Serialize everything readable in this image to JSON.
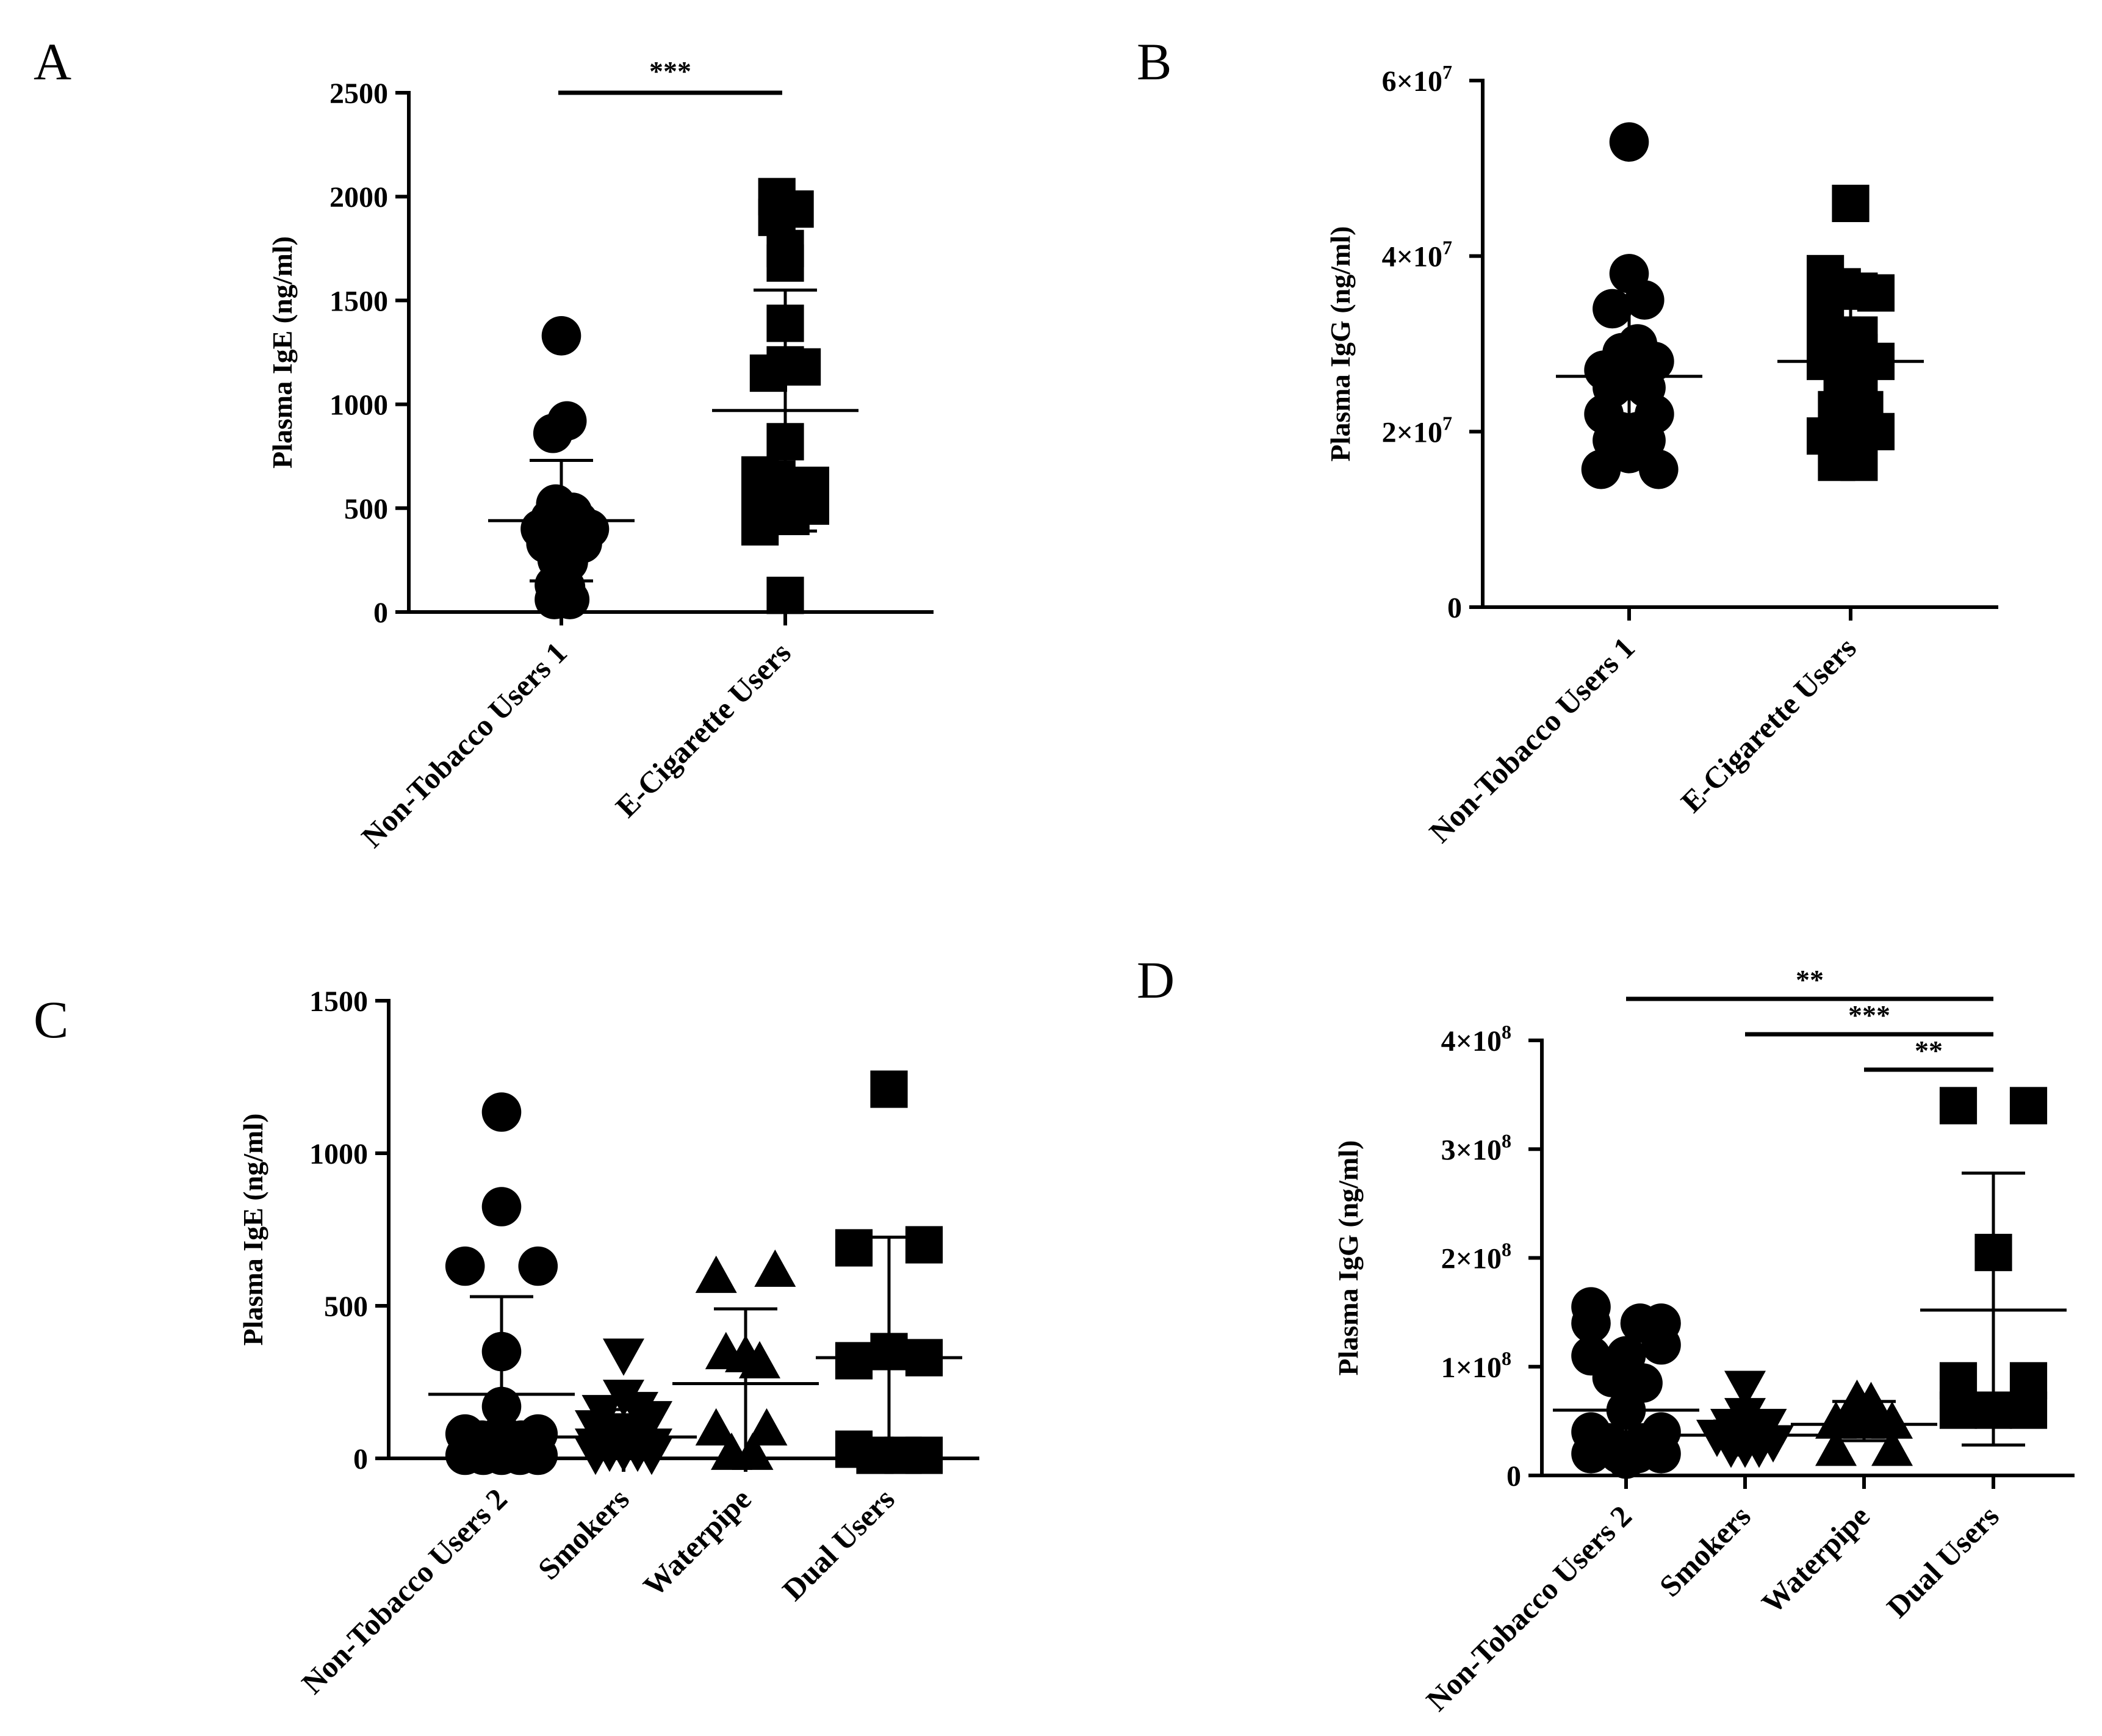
{
  "chart_data": [
    {
      "panel": "A",
      "type": "scatter",
      "ylabel": "Plasma IgE (ng/ml)",
      "ylim": [
        0,
        2500
      ],
      "yticks": [
        {
          "v": 0,
          "t": "0"
        },
        {
          "v": 500,
          "t": "500"
        },
        {
          "v": 1000,
          "t": "1000"
        },
        {
          "v": 1500,
          "t": "1500"
        },
        {
          "v": 2000,
          "t": "2000"
        },
        {
          "v": 2500,
          "t": "2500"
        }
      ],
      "categories": [
        "Non-Tobacco Users 1",
        "E-Cigarette Users"
      ],
      "series": [
        {
          "name": "Non-Tobacco Users 1",
          "marker": "circle",
          "mean": 440,
          "sd_low": 150,
          "sd_high": 730,
          "points": [
            [
              0,
              1330
            ],
            [
              -0.06,
              860
            ],
            [
              0.04,
              920
            ],
            [
              -0.15,
              400
            ],
            [
              -0.08,
              450
            ],
            [
              -0.04,
              520
            ],
            [
              0,
              430
            ],
            [
              0.04,
              470
            ],
            [
              0.08,
              480
            ],
            [
              0.12,
              440
            ],
            [
              0.16,
              410
            ],
            [
              0.2,
              400
            ],
            [
              -0.11,
              330
            ],
            [
              -0.06,
              310
            ],
            [
              0.02,
              320
            ],
            [
              0.08,
              340
            ],
            [
              0.15,
              330
            ],
            [
              -0.03,
              250
            ],
            [
              0.05,
              240
            ],
            [
              -0.05,
              130
            ],
            [
              0.03,
              120
            ],
            [
              -0.05,
              60
            ],
            [
              0.06,
              60
            ]
          ]
        },
        {
          "name": "E-Cigarette Users",
          "marker": "square",
          "mean": 970,
          "sd_low": 390,
          "sd_high": 1550,
          "points": [
            [
              -0.06,
              2000
            ],
            [
              -0.06,
              1900
            ],
            [
              0.07,
              1940
            ],
            [
              0,
              1680
            ],
            [
              -0.12,
              1150
            ],
            [
              0,
              1190
            ],
            [
              0.12,
              1180
            ],
            [
              0,
              1390
            ],
            [
              0,
              1750
            ],
            [
              0,
              820
            ],
            [
              -0.18,
              660
            ],
            [
              -0.06,
              640
            ],
            [
              0.18,
              610
            ],
            [
              -0.18,
              550
            ],
            [
              0.18,
              510
            ],
            [
              -0.06,
              530
            ],
            [
              -0.18,
              410
            ],
            [
              0.04,
              460
            ],
            [
              0,
              80
            ]
          ]
        }
      ],
      "significance": [
        {
          "from": 0,
          "to": 1,
          "label": "***"
        }
      ]
    },
    {
      "panel": "B",
      "type": "scatter",
      "ylabel": "Plasma IgG (ng/ml)",
      "ylim": [
        0,
        60000000
      ],
      "yticks": [
        {
          "v": 0,
          "t": "0",
          "sup": ""
        },
        {
          "v": 20000000,
          "t": "2×10",
          "sup": "7"
        },
        {
          "v": 40000000,
          "t": "4×10",
          "sup": "7"
        },
        {
          "v": 60000000,
          "t": "6×10",
          "sup": "7"
        }
      ],
      "categories": [
        "Non-Tobacco Users 1",
        "E-Cigarette Users"
      ],
      "series": [
        {
          "name": "Non-Tobacco Users 1",
          "marker": "circle",
          "mean": 26300000,
          "sd_low": 17500000,
          "sd_high": 35000000,
          "points": [
            [
              0,
              53000000
            ],
            [
              0,
              38000000
            ],
            [
              -0.12,
              34000000
            ],
            [
              0.11,
              35000000
            ],
            [
              -0.05,
              29000000
            ],
            [
              0.06,
              30000000
            ],
            [
              -0.18,
              27000000
            ],
            [
              0.18,
              28000000
            ],
            [
              -0.06,
              26000000
            ],
            [
              0.05,
              26000000
            ],
            [
              -0.12,
              25000000
            ],
            [
              0.12,
              25000000
            ],
            [
              -0.18,
              22000000
            ],
            [
              0.18,
              22000000
            ],
            [
              -0.06,
              20000000
            ],
            [
              0.06,
              20000000
            ],
            [
              -0.12,
              19000000
            ],
            [
              0.12,
              19000000
            ],
            [
              0,
              17500000
            ],
            [
              -0.2,
              15700000
            ],
            [
              0.21,
              15700000
            ]
          ]
        },
        {
          "name": "E-Cigarette Users",
          "marker": "square",
          "mean": 28000000,
          "sd_low": 20000000,
          "sd_high": 36000000,
          "points": [
            [
              0,
              46000000
            ],
            [
              -0.18,
              38000000
            ],
            [
              -0.06,
              36500000
            ],
            [
              0.06,
              36000000
            ],
            [
              0.18,
              35800000
            ],
            [
              -0.18,
              34000000
            ],
            [
              -0.18,
              31000000
            ],
            [
              -0.06,
              31000000
            ],
            [
              0.06,
              31000000
            ],
            [
              -0.06,
              29500000
            ],
            [
              0.06,
              29000000
            ],
            [
              -0.18,
              28000000
            ],
            [
              0.18,
              28000000
            ],
            [
              -0.06,
              26000000
            ],
            [
              0.06,
              25000000
            ],
            [
              -0.1,
              22500000
            ],
            [
              0.1,
              22500000
            ],
            [
              -0.18,
              19500000
            ],
            [
              -0.06,
              20000000
            ],
            [
              0.18,
              20000000
            ],
            [
              -0.1,
              16500000
            ],
            [
              0.06,
              16500000
            ]
          ]
        }
      ]
    },
    {
      "panel": "C",
      "type": "scatter",
      "ylabel": "Plasma IgE (ng/ml)",
      "ylim": [
        0,
        1500
      ],
      "yticks": [
        {
          "v": 0,
          "t": "0"
        },
        {
          "v": 500,
          "t": "500"
        },
        {
          "v": 1000,
          "t": "1000"
        },
        {
          "v": 1500,
          "t": "1500"
        }
      ],
      "categories": [
        "Non-Tobacco Users 2",
        "Smokers",
        "Waterpipe",
        "Dual Users"
      ],
      "series": [
        {
          "name": "Non-Tobacco Users 2",
          "marker": "circle",
          "mean": 210,
          "sd_low": 0,
          "sd_high": 530,
          "points": [
            [
              0,
              1135
            ],
            [
              0,
              825
            ],
            [
              -0.26,
              630
            ],
            [
              0.26,
              630
            ],
            [
              0,
              350
            ],
            [
              0,
              170
            ],
            [
              0,
              80
            ],
            [
              -0.26,
              80
            ],
            [
              0.26,
              80
            ],
            [
              -0.14,
              60
            ],
            [
              0.14,
              60
            ],
            [
              -0.07,
              30
            ],
            [
              0.07,
              30
            ],
            [
              -0.26,
              10
            ],
            [
              -0.13,
              10
            ],
            [
              0,
              10
            ],
            [
              0.13,
              10
            ],
            [
              0.26,
              10
            ]
          ]
        },
        {
          "name": "Smokers",
          "marker": "triangle-down",
          "mean": 70,
          "sd_low": 0,
          "sd_high": 160,
          "points": [
            [
              0,
              335
            ],
            [
              0,
              200
            ],
            [
              -0.15,
              150
            ],
            [
              0.1,
              160
            ],
            [
              0.2,
              130
            ],
            [
              -0.2,
              100
            ],
            [
              0,
              90
            ],
            [
              -0.1,
              70
            ],
            [
              0.1,
              70
            ],
            [
              -0.2,
              40
            ],
            [
              0.2,
              40
            ],
            [
              -0.1,
              20
            ],
            [
              0,
              20
            ],
            [
              0.1,
              20
            ],
            [
              -0.2,
              10
            ],
            [
              0.2,
              10
            ]
          ]
        },
        {
          "name": "Waterpipe",
          "marker": "triangle-up",
          "mean": 245,
          "sd_low": 0,
          "sd_high": 490,
          "points": [
            [
              -0.21,
              600
            ],
            [
              0.21,
              620
            ],
            [
              -0.14,
              350
            ],
            [
              0,
              340
            ],
            [
              0.1,
              320
            ],
            [
              -0.21,
              100
            ],
            [
              0.15,
              100
            ],
            [
              -0.1,
              20
            ],
            [
              0.05,
              20
            ]
          ]
        },
        {
          "name": "Dual Users",
          "marker": "square",
          "mean": 330,
          "sd_low": 0,
          "sd_high": 725,
          "points": [
            [
              0,
              1210
            ],
            [
              -0.25,
              690
            ],
            [
              0.25,
              700
            ],
            [
              -0.25,
              320
            ],
            [
              0,
              350
            ],
            [
              0.25,
              330
            ],
            [
              -0.25,
              30
            ],
            [
              -0.1,
              10
            ],
            [
              0.1,
              10
            ],
            [
              0.25,
              10
            ]
          ]
        }
      ]
    },
    {
      "panel": "D",
      "type": "scatter",
      "ylabel": "Plasma IgG (ng/ml)",
      "ylim": [
        0,
        400000000
      ],
      "yticks": [
        {
          "v": 0,
          "t": "0",
          "sup": ""
        },
        {
          "v": 100000000,
          "t": "1×10",
          "sup": "8"
        },
        {
          "v": 200000000,
          "t": "2×10",
          "sup": "8"
        },
        {
          "v": 300000000,
          "t": "3×10",
          "sup": "8"
        },
        {
          "v": 400000000,
          "t": "4×10",
          "sup": "8"
        }
      ],
      "categories": [
        "Non-Tobacco Users 2",
        "Smokers",
        "Waterpipe",
        "Dual Users"
      ],
      "series": [
        {
          "name": "Non-Tobacco Users 2",
          "marker": "circle",
          "mean": 60000000,
          "sd_low": 10000000,
          "sd_high": 110000000,
          "points": [
            [
              -0.25,
              155000000
            ],
            [
              0.25,
              140000000
            ],
            [
              -0.25,
              140000000
            ],
            [
              0.1,
              140000000
            ],
            [
              -0.25,
              110000000
            ],
            [
              0.25,
              120000000
            ],
            [
              0,
              110000000
            ],
            [
              -0.1,
              90000000
            ],
            [
              0.12,
              85000000
            ],
            [
              0,
              60000000
            ],
            [
              -0.25,
              40000000
            ],
            [
              0.25,
              40000000
            ],
            [
              -0.12,
              30000000
            ],
            [
              0.12,
              30000000
            ],
            [
              -0.25,
              20000000
            ],
            [
              -0.05,
              20000000
            ],
            [
              0.08,
              20000000
            ],
            [
              0.25,
              20000000
            ],
            [
              0,
              15000000
            ]
          ]
        },
        {
          "name": "Smokers",
          "marker": "triangle-down",
          "mean": 37000000,
          "sd_low": 25000000,
          "sd_high": 50000000,
          "points": [
            [
              0,
              80000000
            ],
            [
              0,
              55000000
            ],
            [
              -0.1,
              45000000
            ],
            [
              0.15,
              45000000
            ],
            [
              -0.2,
              35000000
            ],
            [
              -0.05,
              35000000
            ],
            [
              0.1,
              35000000
            ],
            [
              0.2,
              30000000
            ],
            [
              -0.1,
              25000000
            ],
            [
              0,
              25000000
            ],
            [
              0.1,
              25000000
            ]
          ]
        },
        {
          "name": "Waterpipe",
          "marker": "triangle-up",
          "mean": 47000000,
          "sd_low": 32000000,
          "sd_high": 68000000,
          "points": [
            [
              -0.05,
              70000000
            ],
            [
              0.05,
              68000000
            ],
            [
              -0.2,
              50000000
            ],
            [
              -0.1,
              55000000
            ],
            [
              0.1,
              55000000
            ],
            [
              0.2,
              50000000
            ],
            [
              0,
              50000000
            ],
            [
              -0.2,
              25000000
            ],
            [
              0.2,
              25000000
            ]
          ]
        },
        {
          "name": "Dual Users",
          "marker": "square",
          "mean": 152000000,
          "sd_low": 28000000,
          "sd_high": 278000000,
          "points": [
            [
              -0.25,
              340000000
            ],
            [
              0.25,
              340000000
            ],
            [
              0,
              205000000
            ],
            [
              -0.25,
              87000000
            ],
            [
              0.25,
              87000000
            ],
            [
              -0.25,
              60000000
            ],
            [
              0,
              60000000
            ],
            [
              0.25,
              60000000
            ]
          ]
        }
      ],
      "significance": [
        {
          "from": 0,
          "to": 3,
          "label": "**"
        },
        {
          "from": 1,
          "to": 3,
          "label": "***"
        },
        {
          "from": 2,
          "to": 3,
          "label": "**"
        }
      ]
    }
  ]
}
